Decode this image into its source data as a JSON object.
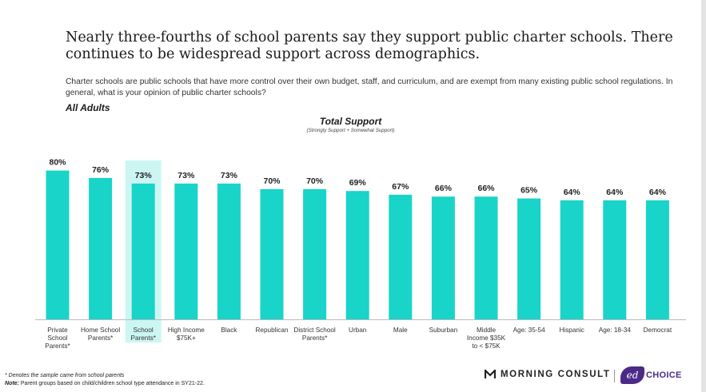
{
  "headline": "Nearly three-fourths of school parents say they support public charter schools. There continues to be widespread support across demographics.",
  "question": "Charter schools are public schools that have more control over their own budget, staff, and curriculum, and are exempt from many existing public school regulations. In general, what is your opinion of public charter schools?",
  "segment": "All Adults",
  "chart_data": {
    "type": "bar",
    "title": "Total Support",
    "subtitle": "(Strongly Support + Somewhat Support)",
    "categories": [
      "Private School Parents*",
      "Home School Parents*",
      "School Parents*",
      "High Income $75K+",
      "Black",
      "Republican",
      "District School Parents*",
      "Urban",
      "Male",
      "Suburban",
      "Middle Income $35K to < $75K",
      "Age: 35-54",
      "Hispanic",
      "Age: 18-34",
      "Democrat"
    ],
    "category_lines": [
      [
        "Private",
        "School",
        "Parents*"
      ],
      [
        "Home School",
        "Parents*"
      ],
      [
        "School",
        "Parents*"
      ],
      [
        "High Income",
        "$75K+"
      ],
      [
        "Black"
      ],
      [
        "Republican"
      ],
      [
        "District School",
        "Parents*"
      ],
      [
        "Urban"
      ],
      [
        "Male"
      ],
      [
        "Suburban"
      ],
      [
        "Middle",
        "Income $35K",
        "to < $75K"
      ],
      [
        "Age: 35-54"
      ],
      [
        "Hispanic"
      ],
      [
        "Age: 18-34"
      ],
      [
        "Democrat"
      ]
    ],
    "values": [
      80,
      76,
      73,
      73,
      73,
      70,
      70,
      69,
      67,
      66,
      66,
      65,
      64,
      64,
      64
    ],
    "data_labels": [
      "80%",
      "76%",
      "73%",
      "73%",
      "73%",
      "70%",
      "70%",
      "69%",
      "67%",
      "66%",
      "66%",
      "65%",
      "64%",
      "64%",
      "64%"
    ],
    "highlighted_category": "School Parents*",
    "ylim": [
      0,
      100
    ],
    "grid": false,
    "legend": "none",
    "colors": {
      "bar": "#19d4c8",
      "highlight_bg": "#ccf6f3",
      "axis": "#bbbbbb"
    }
  },
  "footnotes": {
    "note1": "* Denotes the sample came from school parents",
    "note2_label": "Note:",
    "note2_text": " Parent groups based on child/children school type attendance in SY21-22."
  },
  "logos": {
    "morning_consult": "MORNING CONSULT",
    "morning_consult_icon": "mc-logo-mark",
    "edchoice_badge": "ed",
    "edchoice_text": "CHOICE",
    "edchoice_color": "#4b2b87"
  }
}
